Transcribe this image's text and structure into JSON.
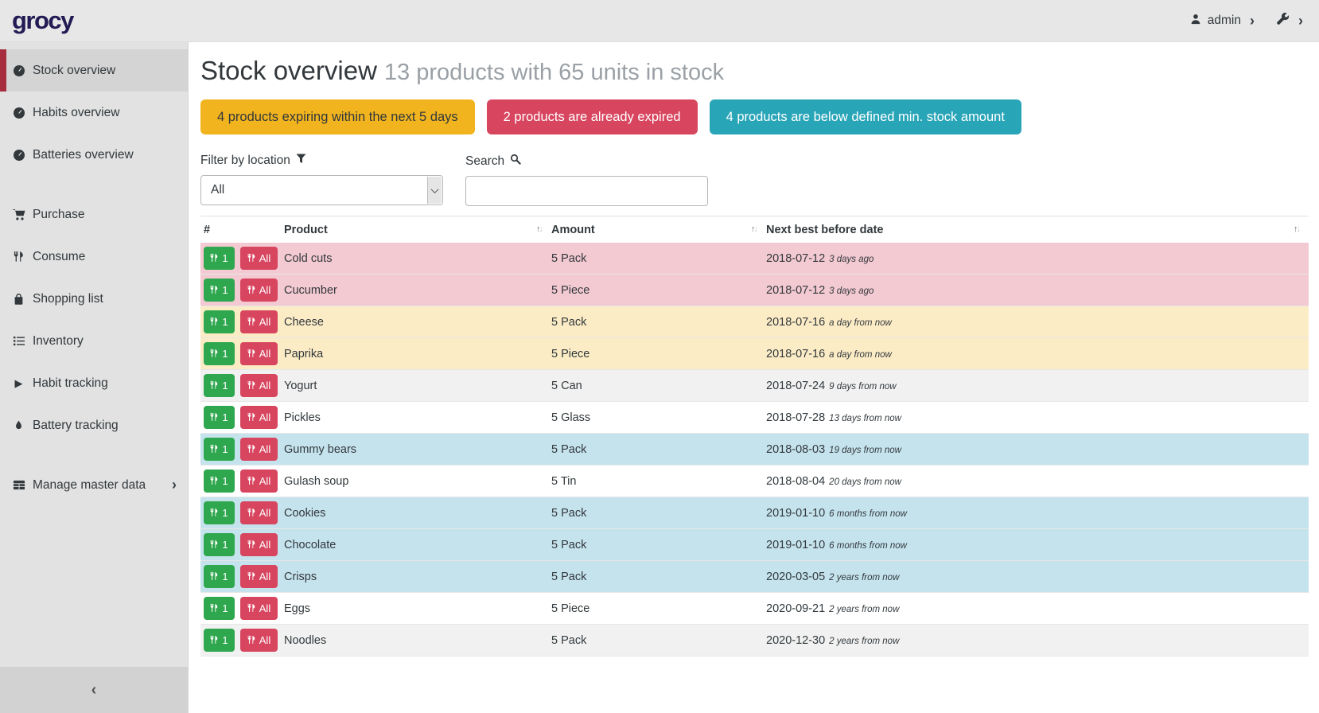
{
  "header": {
    "logo_text": "grocy",
    "user_name": "admin",
    "icons": [
      "user-icon",
      "chevron-right-icon",
      "wrench-icon",
      "chevron-right-icon"
    ]
  },
  "sidebar": {
    "items": [
      {
        "label": "Stock overview",
        "icon": "tachometer-icon",
        "active": true,
        "gap": false,
        "has_submenu": false
      },
      {
        "label": "Habits overview",
        "icon": "tachometer-icon",
        "active": false,
        "gap": false,
        "has_submenu": false
      },
      {
        "label": "Batteries overview",
        "icon": "tachometer-icon",
        "active": false,
        "gap": false,
        "has_submenu": false
      },
      {
        "label": "Purchase",
        "icon": "shopping-cart-icon",
        "active": false,
        "gap": true,
        "has_submenu": false
      },
      {
        "label": "Consume",
        "icon": "utensils-icon",
        "active": false,
        "gap": false,
        "has_submenu": false
      },
      {
        "label": "Shopping list",
        "icon": "shopping-bag-icon",
        "active": false,
        "gap": false,
        "has_submenu": false
      },
      {
        "label": "Inventory",
        "icon": "list-icon",
        "active": false,
        "gap": false,
        "has_submenu": false
      },
      {
        "label": "Habit tracking",
        "icon": "play-icon",
        "active": false,
        "gap": false,
        "has_submenu": false
      },
      {
        "label": "Battery tracking",
        "icon": "tint-icon",
        "active": false,
        "gap": false,
        "has_submenu": false
      },
      {
        "label": "Manage master data",
        "icon": "table-icon",
        "active": false,
        "gap": true,
        "has_submenu": true
      }
    ],
    "collapse_icon": "chevron-left-icon"
  },
  "page": {
    "title": "Stock overview",
    "subtitle": "13 products with 65 units in stock",
    "badges": [
      {
        "label": "4 products expiring within the next 5 days",
        "color": "#f1b41e",
        "text_color": "#32383c"
      },
      {
        "label": "2 products are already expired",
        "color": "#d8455f",
        "text_color": "#ffffff"
      },
      {
        "label": "4 products are below defined min. stock amount",
        "color": "#29a5b8",
        "text_color": "#ffffff"
      }
    ],
    "filter": {
      "label": "Filter by location",
      "icon": "filter-icon",
      "value": "All"
    },
    "search": {
      "label": "Search",
      "icon": "search-icon",
      "value": ""
    }
  },
  "table": {
    "columns": [
      "#",
      "Product",
      "Amount",
      "Next best before date"
    ],
    "row_buttons": {
      "consume_one": "1",
      "consume_all": "All"
    },
    "rows": [
      {
        "product": "Cold cuts",
        "amount": "5 Pack",
        "date": "2018-07-12",
        "note": "3 days ago",
        "status": "expired"
      },
      {
        "product": "Cucumber",
        "amount": "5 Piece",
        "date": "2018-07-12",
        "note": "3 days ago",
        "status": "expired"
      },
      {
        "product": "Cheese",
        "amount": "5 Pack",
        "date": "2018-07-16",
        "note": "a day from now",
        "status": "expiring"
      },
      {
        "product": "Paprika",
        "amount": "5 Piece",
        "date": "2018-07-16",
        "note": "a day from now",
        "status": "expiring"
      },
      {
        "product": "Yogurt",
        "amount": "5 Can",
        "date": "2018-07-24",
        "note": "9 days from now",
        "status": "none"
      },
      {
        "product": "Pickles",
        "amount": "5 Glass",
        "date": "2018-07-28",
        "note": "13 days from now",
        "status": "none"
      },
      {
        "product": "Gummy bears",
        "amount": "5 Pack",
        "date": "2018-08-03",
        "note": "19 days from now",
        "status": "below-min"
      },
      {
        "product": "Gulash soup",
        "amount": "5 Tin",
        "date": "2018-08-04",
        "note": "20 days from now",
        "status": "none"
      },
      {
        "product": "Cookies",
        "amount": "5 Pack",
        "date": "2019-01-10",
        "note": "6 months from now",
        "status": "below-min"
      },
      {
        "product": "Chocolate",
        "amount": "5 Pack",
        "date": "2019-01-10",
        "note": "6 months from now",
        "status": "below-min"
      },
      {
        "product": "Crisps",
        "amount": "5 Pack",
        "date": "2020-03-05",
        "note": "2 years from now",
        "status": "below-min"
      },
      {
        "product": "Eggs",
        "amount": "5 Piece",
        "date": "2020-09-21",
        "note": "2 years from now",
        "status": "none"
      },
      {
        "product": "Noodles",
        "amount": "5 Pack",
        "date": "2020-12-30",
        "note": "2 years from now",
        "status": "none"
      }
    ]
  },
  "colors": {
    "header_bg": "#e7e7e7",
    "sidebar_bg": "#e2e2e2",
    "sidebar_active_bg": "#d4d4d4",
    "sidebar_active_border": "#a62c3e",
    "logo_color": "#221b54",
    "button_green": "#2fa74e",
    "button_red": "#d8455f",
    "row_expired_bg": "#f3c9d2",
    "row_expiring_bg": "#fbecc6",
    "row_below_min_bg": "#c5e3ed",
    "row_stripe_bg": "#f1f1f1"
  }
}
